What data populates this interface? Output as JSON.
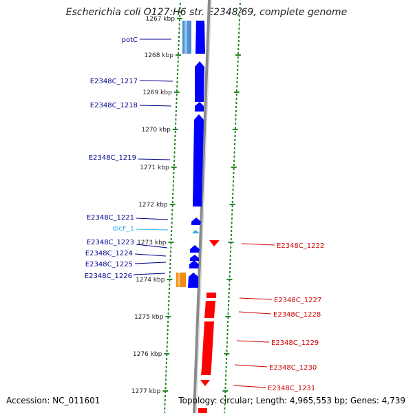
{
  "title": "Escherichia coli O127:H6 str. E2348/69, complete genome",
  "accession": "Accession: NC_011601",
  "topology": "Topology: circular; Length: 4,965,553 bp; Genes: 4,739",
  "colors": {
    "forward_cds": "#0000ff",
    "forward_cds_light": "#5aa5e6",
    "forward_rna": "#31a9f0",
    "reverse_cds": "#ff0000",
    "other_feature": "#f08c10",
    "backbone": "#888888",
    "dots": "#228822",
    "forward_label": "#00008b",
    "reverse_label": "#cc0000"
  },
  "ticks": [
    {
      "label": "1267 kbp",
      "kbp": 1267
    },
    {
      "label": "1268 kbp",
      "kbp": 1268
    },
    {
      "label": "1269 kbp",
      "kbp": 1269
    },
    {
      "label": "1270 kbp",
      "kbp": 1270
    },
    {
      "label": "1271 kbp",
      "kbp": 1271
    },
    {
      "label": "1272 kbp",
      "kbp": 1272
    },
    {
      "label": "1273 kbp",
      "kbp": 1273
    },
    {
      "label": "1274 kbp",
      "kbp": 1274
    },
    {
      "label": "1275 kbp",
      "kbp": 1275
    },
    {
      "label": "1276 kbp",
      "kbp": 1276
    },
    {
      "label": "1277 kbp",
      "kbp": 1277
    }
  ],
  "forward_genes": [
    {
      "label": "potC",
      "kind": "cds"
    },
    {
      "label": "E2348C_1217",
      "kind": "cds"
    },
    {
      "label": "E2348C_1218",
      "kind": "cds"
    },
    {
      "label": "E2348C_1219",
      "kind": "cds"
    },
    {
      "label": "E2348C_1221",
      "kind": "cds"
    },
    {
      "label": "dicF_1",
      "kind": "rna"
    },
    {
      "label": "E2348C_1223",
      "kind": "cds"
    },
    {
      "label": "E2348C_1224",
      "kind": "cds"
    },
    {
      "label": "E2348C_1225",
      "kind": "cds"
    },
    {
      "label": "E2348C_1226",
      "kind": "cds"
    }
  ],
  "reverse_genes": [
    {
      "label": "E2348C_1222"
    },
    {
      "label": "E2348C_1227"
    },
    {
      "label": "E2348C_1228"
    },
    {
      "label": "E2348C_1229"
    },
    {
      "label": "E2348C_1230"
    },
    {
      "label": "E2348C_1231"
    }
  ]
}
